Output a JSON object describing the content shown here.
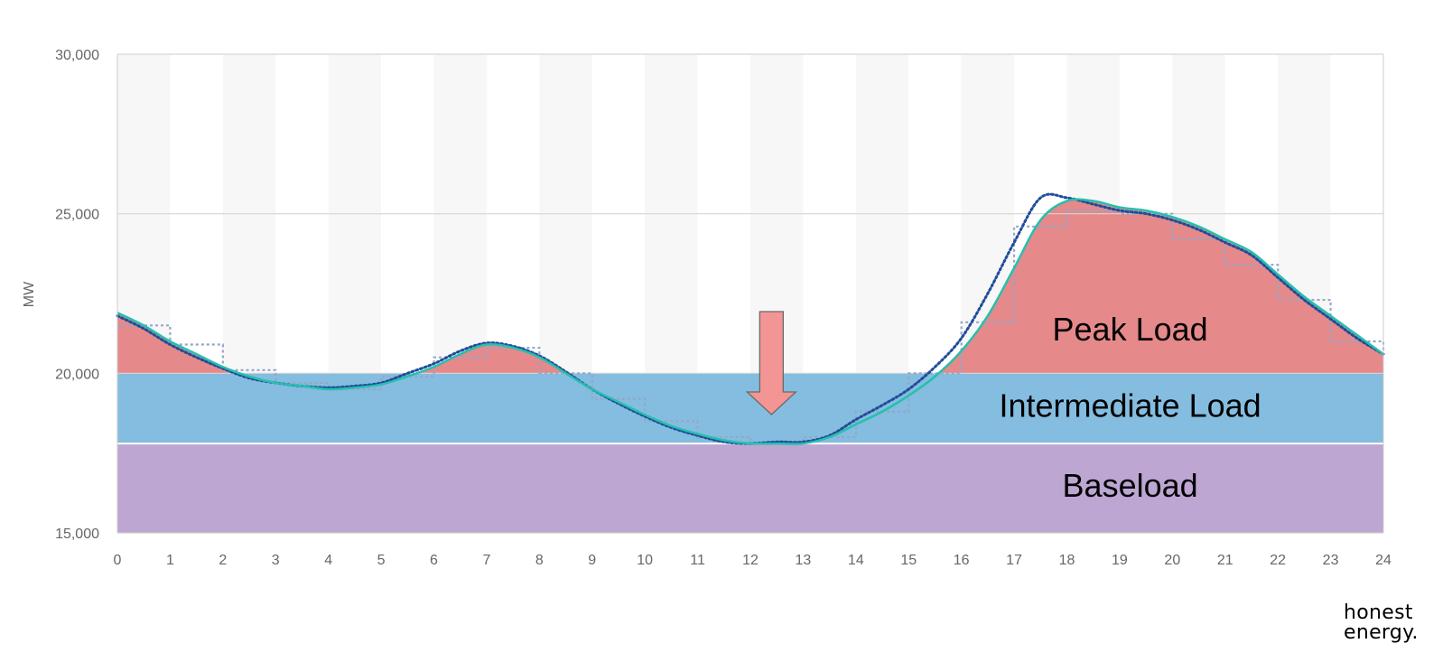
{
  "chart_data": {
    "type": "area",
    "ylabel": "MW",
    "xlabel": "",
    "xlim": [
      0,
      24
    ],
    "ylim": [
      15000,
      30000
    ],
    "x_ticks": [
      "0",
      "1",
      "2",
      "3",
      "4",
      "5",
      "6",
      "7",
      "8",
      "9",
      "10",
      "11",
      "12",
      "13",
      "14",
      "15",
      "16",
      "17",
      "18",
      "19",
      "20",
      "21",
      "22",
      "23",
      "24"
    ],
    "y_ticks": [
      "15,000",
      "20,000",
      "25,000",
      "30,000"
    ],
    "grid": true,
    "bands": [
      {
        "name": "Baseload",
        "from": 15000,
        "to": 17800,
        "color": "#bda6d2"
      },
      {
        "name": "Intermediate Load",
        "from": 17800,
        "to": 20000,
        "color": "#84bddf"
      },
      {
        "name": "Peak Load",
        "from": 20000,
        "to": null,
        "color": "#e5898a"
      }
    ],
    "series": [
      {
        "style": "solid",
        "color": "#25c0ad",
        "x": [
          0,
          0.5,
          1,
          1.5,
          2,
          2.5,
          3,
          3.5,
          4,
          4.5,
          5,
          5.5,
          6,
          6.5,
          7,
          7.5,
          8,
          8.5,
          9,
          9.5,
          10,
          10.5,
          11,
          11.5,
          12,
          12.5,
          13,
          13.5,
          14,
          14.5,
          15,
          15.5,
          16,
          16.5,
          17,
          17.5,
          18,
          18.5,
          19,
          19.5,
          20,
          20.5,
          21,
          21.5,
          22,
          22.5,
          23,
          23.5,
          24
        ],
        "y": [
          21900,
          21500,
          21000,
          20600,
          20200,
          19900,
          19700,
          19600,
          19500,
          19550,
          19650,
          19900,
          20200,
          20600,
          20900,
          20800,
          20500,
          20000,
          19500,
          19100,
          18700,
          18350,
          18100,
          17900,
          17800,
          17800,
          17800,
          18000,
          18400,
          18800,
          19300,
          19900,
          20700,
          21800,
          23300,
          24800,
          25400,
          25400,
          25200,
          25100,
          24900,
          24600,
          24200,
          23800,
          23100,
          22400,
          21800,
          21200,
          20600
        ]
      },
      {
        "style": "dotted",
        "color": "#1f4d9a",
        "x": [
          0,
          0.5,
          1,
          1.5,
          2,
          2.5,
          3,
          3.5,
          4,
          4.5,
          5,
          5.5,
          6,
          6.5,
          7,
          7.5,
          8,
          8.5,
          9,
          9.5,
          10,
          10.5,
          11,
          11.5,
          12,
          12.5,
          13,
          13.5,
          14,
          14.5,
          15,
          15.5,
          16,
          16.5,
          17,
          17.5,
          18,
          18.5,
          19,
          19.5,
          20,
          20.5,
          21,
          21.5,
          22,
          22.5,
          23,
          23.5,
          24
        ],
        "y": [
          21800,
          21400,
          20900,
          20500,
          20150,
          19850,
          19700,
          19600,
          19550,
          19600,
          19700,
          20000,
          20300,
          20700,
          20950,
          20850,
          20550,
          20050,
          19500,
          19050,
          18650,
          18300,
          18050,
          17850,
          17800,
          17850,
          17850,
          18050,
          18550,
          19000,
          19500,
          20200,
          21100,
          22500,
          24100,
          25500,
          25500,
          25300,
          25100,
          25000,
          24800,
          24500,
          24100,
          23700,
          23000,
          22300,
          21700,
          21100,
          20600
        ]
      },
      {
        "style": "step-dotted",
        "color": "#94a7c9",
        "x": [
          0,
          1,
          2,
          3,
          4,
          5,
          6,
          7,
          8,
          9,
          10,
          11,
          12,
          13,
          14,
          15,
          16,
          17,
          18,
          19,
          20,
          21,
          22,
          23,
          24
        ],
        "y": [
          21500,
          20900,
          20100,
          19700,
          19500,
          19900,
          20500,
          20800,
          20000,
          19200,
          18500,
          18000,
          17800,
          18000,
          18800,
          20000,
          21600,
          24600,
          25100,
          25000,
          24200,
          23400,
          22300,
          21000,
          20600
        ]
      }
    ],
    "annotations": [
      {
        "type": "arrow-down",
        "x": 12.4,
        "color": "#f39594"
      }
    ]
  },
  "brand": {
    "line1": "honest",
    "line2": "energy."
  }
}
